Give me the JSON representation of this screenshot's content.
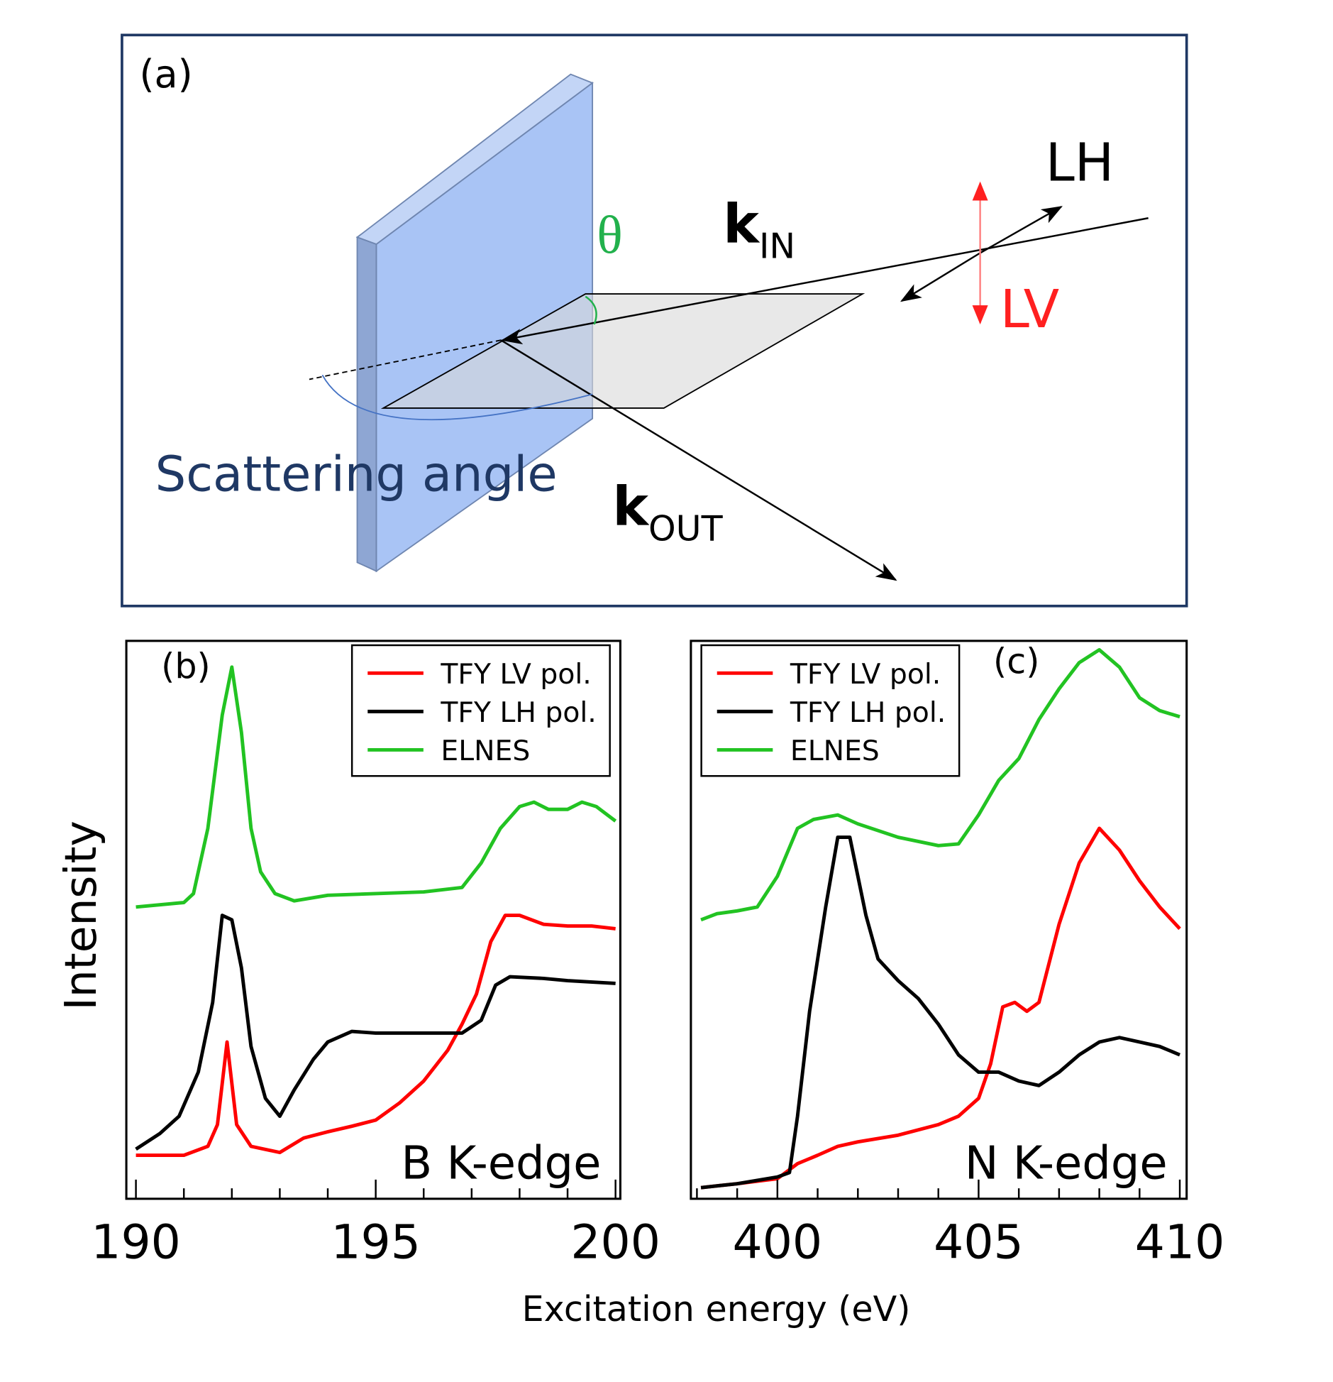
{
  "diagram": {
    "label": "(a)",
    "theta": "θ",
    "k_in": {
      "main": "k",
      "sub": "IN"
    },
    "lh": "LH",
    "lv": "LV",
    "scattering": "Scattering angle",
    "k_out": {
      "main": "k",
      "sub": "OUT"
    }
  },
  "chart_data": [
    {
      "type": "line",
      "xlabel": "Excitation energy (eV)",
      "ylabel": "Intensity",
      "annotations": [
        "(b)",
        "B K-edge"
      ],
      "legend": "upper right",
      "xlim": [
        189.8,
        200.1
      ],
      "xticks": [
        190,
        195,
        200
      ],
      "xminorticks": [
        191,
        192,
        193,
        194,
        196,
        197,
        198,
        199
      ],
      "ylim": [
        0,
        100
      ],
      "series": [
        {
          "name": "TFY LV pol.",
          "color": "#ff0000",
          "x": [
            190,
            191,
            191.5,
            191.7,
            191.9,
            192.1,
            192.4,
            193,
            193.5,
            194,
            194.5,
            195,
            195.5,
            196,
            196.5,
            196.8,
            197.1,
            197.4,
            197.7,
            198,
            198.5,
            199,
            199.5,
            200
          ],
          "values": [
            7.8,
            7.8,
            9.4,
            13.3,
            28.1,
            13.3,
            9.4,
            8.3,
            10.9,
            12,
            13,
            14.1,
            17.2,
            21.1,
            26.6,
            31.3,
            36.7,
            46.1,
            50.8,
            50.8,
            49.2,
            48.9,
            48.9,
            48.4
          ]
        },
        {
          "name": "TFY LH pol.",
          "color": "#000000",
          "x": [
            190,
            190.5,
            190.9,
            191.3,
            191.6,
            191.8,
            192,
            192.2,
            192.4,
            192.7,
            193,
            193.3,
            193.7,
            194,
            194.5,
            195,
            196,
            196.8,
            197.2,
            197.5,
            197.8,
            198.5,
            199,
            200
          ],
          "values": [
            8.9,
            11.7,
            14.8,
            22.7,
            35.2,
            50.8,
            50,
            41.4,
            27.3,
            18,
            14.8,
            19.5,
            25,
            28.1,
            30,
            29.7,
            29.7,
            29.7,
            32,
            38.3,
            39.8,
            39.5,
            39.1,
            38.6
          ]
        },
        {
          "name": "ELNES",
          "color": "#22c322",
          "x": [
            190,
            191,
            191.2,
            191.5,
            191.8,
            192,
            192.2,
            192.4,
            192.6,
            192.9,
            193.3,
            194,
            195,
            196,
            196.8,
            197.2,
            197.6,
            198,
            198.3,
            198.6,
            199,
            199.3,
            199.6,
            200
          ],
          "values": [
            52.3,
            53.1,
            54.7,
            66.4,
            86.7,
            95.3,
            83.6,
            66.4,
            58.6,
            54.7,
            53.4,
            54.4,
            54.7,
            55,
            55.8,
            60.2,
            66.4,
            70.3,
            71.1,
            69.8,
            69.8,
            71.1,
            70.3,
            67.7
          ]
        }
      ]
    },
    {
      "type": "line",
      "annotations": [
        "(c)",
        "N K-edge"
      ],
      "legend": "upper left",
      "xlim": [
        397.85,
        410.17
      ],
      "xticks": [
        400,
        405,
        410
      ],
      "xminorticks": [
        398,
        399,
        401,
        402,
        403,
        404,
        406,
        407,
        408,
        409
      ],
      "ylim": [
        0,
        100
      ],
      "series": [
        {
          "name": "TFY LV pol.",
          "color": "#ff0000",
          "x": [
            398.1,
            399,
            400,
            400.5,
            401,
            401.5,
            402,
            403,
            404,
            404.5,
            405,
            405.3,
            405.6,
            405.9,
            406.2,
            406.5,
            407,
            407.5,
            408,
            408.5,
            409,
            409.5,
            410
          ],
          "values": [
            2,
            2.7,
            3.6,
            6.3,
            7.8,
            9.4,
            10.2,
            11.4,
            13.3,
            14.8,
            18,
            24.2,
            34.4,
            35.2,
            33.6,
            35.2,
            49.2,
            60.2,
            66.4,
            62.5,
            57,
            52.3,
            48.4
          ]
        },
        {
          "name": "TFY LH pol.",
          "color": "#000000",
          "x": [
            398.1,
            399,
            400,
            400.3,
            400.5,
            400.8,
            401.2,
            401.5,
            401.8,
            402.2,
            402.5,
            403,
            403.5,
            404,
            404.5,
            405,
            405.5,
            406,
            406.5,
            407,
            407.5,
            408,
            408.5,
            409,
            409.5,
            410
          ],
          "values": [
            2,
            2.7,
            3.9,
            4.7,
            14.8,
            33.6,
            52.3,
            64.8,
            64.8,
            50.8,
            43,
            39.1,
            35.9,
            31.3,
            25.8,
            22.7,
            22.7,
            21.1,
            20.3,
            22.7,
            25.8,
            28.1,
            28.9,
            28.1,
            27.3,
            25.8
          ]
        },
        {
          "name": "ELNES",
          "color": "#22c322",
          "x": [
            398.1,
            398.5,
            399,
            399.5,
            400,
            400.5,
            400.9,
            401.5,
            402,
            403,
            404,
            404.5,
            405,
            405.5,
            406,
            406.5,
            407,
            407.5,
            408,
            408.5,
            409,
            409.5,
            410
          ],
          "values": [
            50,
            51.1,
            51.6,
            52.3,
            57.8,
            66.4,
            68,
            68.8,
            67.2,
            64.8,
            63.3,
            63.6,
            68.8,
            75,
            78.9,
            85.9,
            91.4,
            96.1,
            98.4,
            95.3,
            89.8,
            87.5,
            86.4
          ]
        }
      ]
    }
  ]
}
